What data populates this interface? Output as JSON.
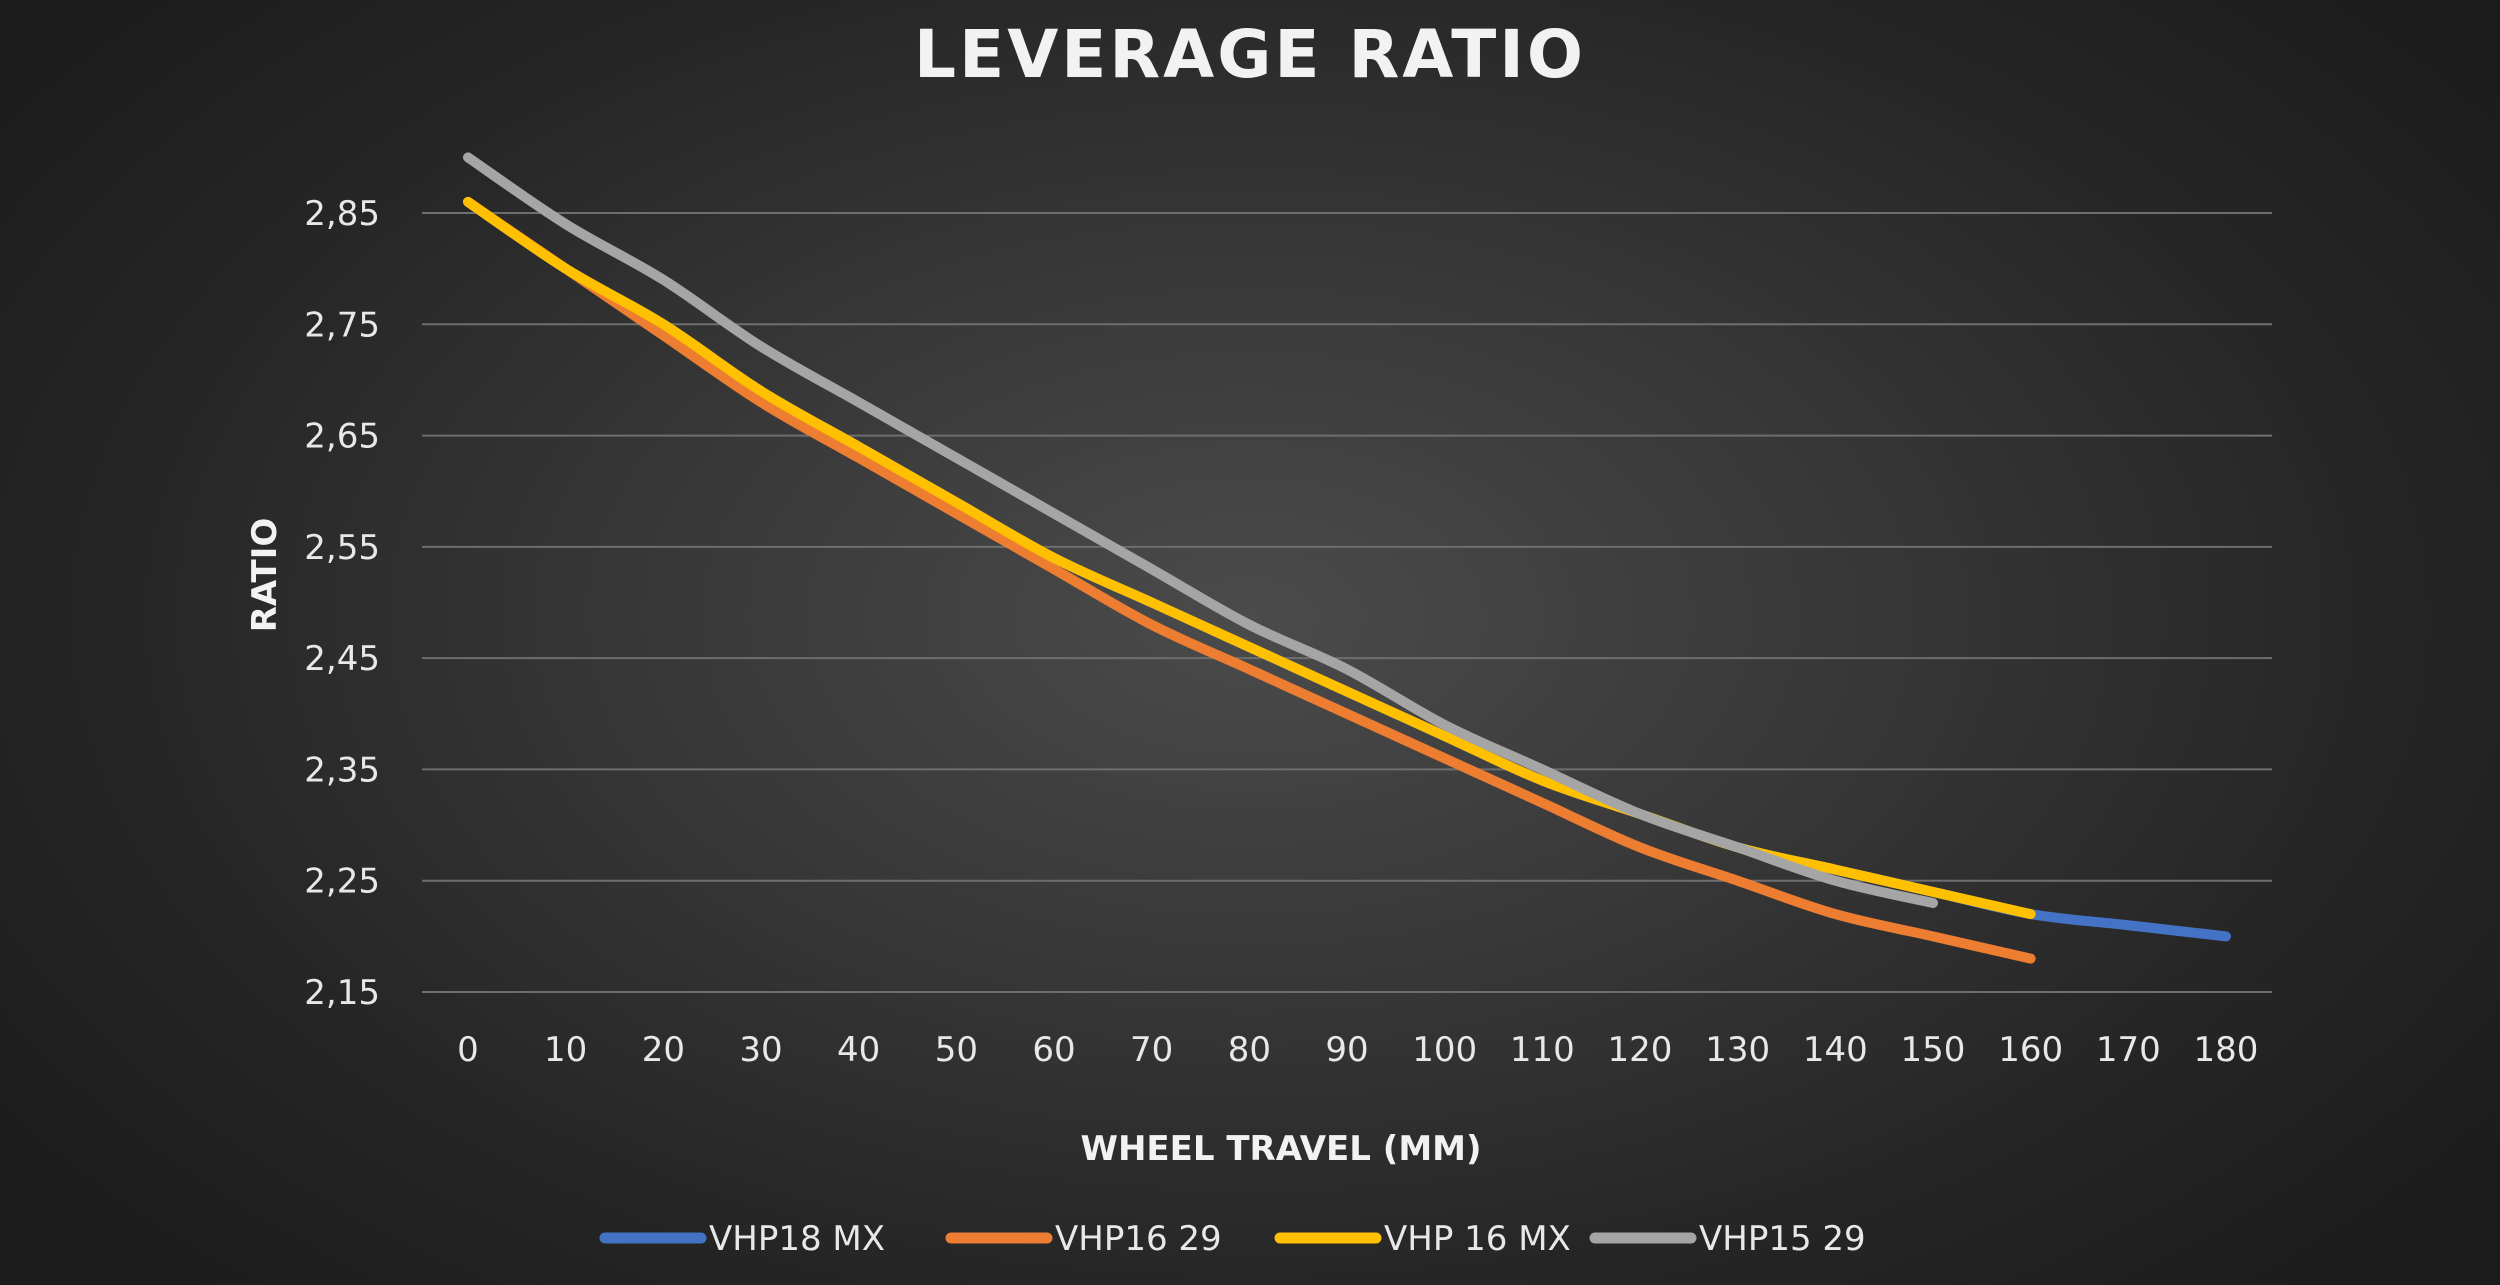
{
  "chart_data": {
    "type": "line",
    "title": "LEVERAGE RATIO",
    "xlabel": "WHEEL TRAVEL (MM)",
    "ylabel": "RATIO",
    "x_ticks": [
      "0",
      "10",
      "20",
      "30",
      "40",
      "50",
      "60",
      "70",
      "80",
      "90",
      "100",
      "110",
      "120",
      "130",
      "140",
      "150",
      "160",
      "170",
      "180"
    ],
    "y_ticks": [
      "2,15",
      "2,25",
      "2,35",
      "2,45",
      "2,55",
      "2,65",
      "2,75",
      "2,85"
    ],
    "xlim": [
      0,
      180
    ],
    "ylim": [
      2.15,
      2.85
    ],
    "grid": true,
    "legend_position": "bottom",
    "series": [
      {
        "name": "VHP18 MX",
        "color": "#4472c4",
        "x": [
          0,
          10,
          20,
          30,
          40,
          50,
          60,
          70,
          80,
          90,
          100,
          110,
          120,
          130,
          140,
          150,
          160,
          170,
          180
        ],
        "y": [
          2.86,
          2.8,
          2.75,
          2.69,
          2.64,
          2.59,
          2.54,
          2.5,
          2.46,
          2.42,
          2.38,
          2.34,
          2.31,
          2.28,
          2.26,
          2.24,
          2.22,
          2.21,
          2.2
        ]
      },
      {
        "name": "VHP16 29",
        "color": "#ed7d31",
        "x": [
          0,
          10,
          20,
          30,
          40,
          50,
          60,
          70,
          80,
          90,
          100,
          110,
          120,
          130,
          140,
          150,
          160
        ],
        "y": [
          2.86,
          2.8,
          2.74,
          2.68,
          2.63,
          2.58,
          2.53,
          2.48,
          2.44,
          2.4,
          2.36,
          2.32,
          2.28,
          2.25,
          2.22,
          2.2,
          2.18
        ]
      },
      {
        "name": "VHP 16 MX",
        "color": "#ffc000",
        "x": [
          0,
          10,
          20,
          30,
          40,
          50,
          60,
          70,
          80,
          90,
          100,
          110,
          120,
          130,
          140,
          150,
          160
        ],
        "y": [
          2.86,
          2.8,
          2.75,
          2.69,
          2.64,
          2.59,
          2.54,
          2.5,
          2.46,
          2.42,
          2.38,
          2.34,
          2.31,
          2.28,
          2.26,
          2.24,
          2.22
        ]
      },
      {
        "name": "VHP15 29",
        "color": "#a5a5a5",
        "x": [
          0,
          10,
          20,
          30,
          40,
          50,
          60,
          70,
          80,
          90,
          100,
          110,
          120,
          130,
          140,
          150
        ],
        "y": [
          2.9,
          2.84,
          2.79,
          2.73,
          2.68,
          2.63,
          2.58,
          2.53,
          2.48,
          2.44,
          2.39,
          2.35,
          2.31,
          2.28,
          2.25,
          2.23
        ]
      }
    ]
  }
}
